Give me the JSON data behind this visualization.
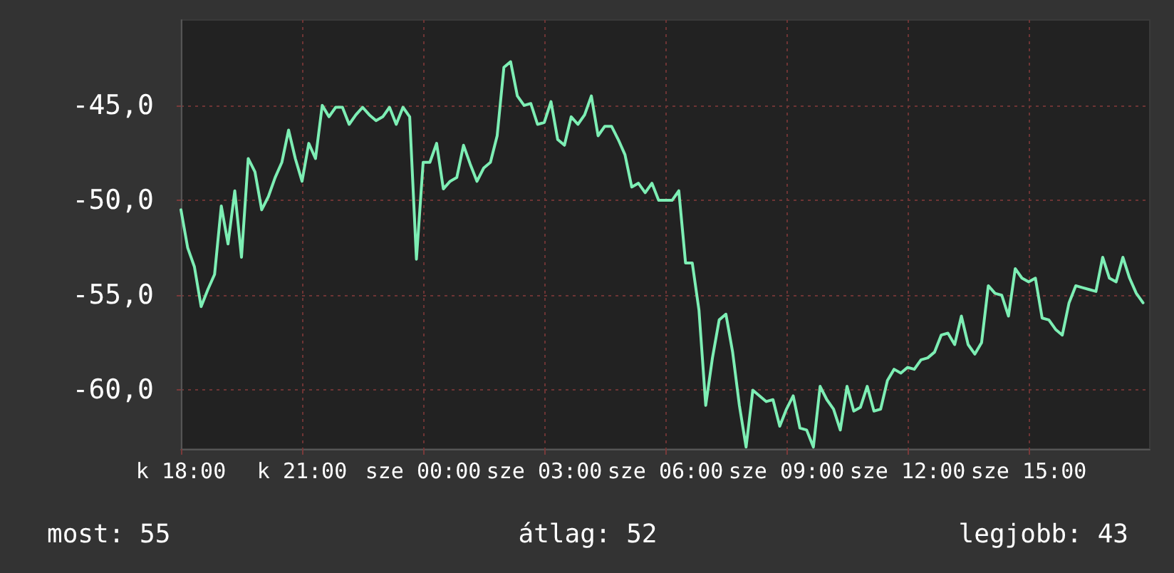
{
  "chart_data": {
    "type": "line",
    "categories": [
      "k 18:00",
      null,
      null,
      null,
      null,
      null,
      null,
      null,
      null,
      null,
      null,
      null,
      null,
      null,
      null,
      null,
      null,
      null,
      "k 21:00",
      null,
      null,
      null,
      null,
      null,
      null,
      null,
      null,
      null,
      null,
      null,
      null,
      null,
      null,
      null,
      null,
      null,
      "sze 00:00",
      null,
      null,
      null,
      null,
      null,
      null,
      null,
      null,
      null,
      null,
      null,
      null,
      null,
      null,
      null,
      null,
      null,
      "sze 03:00",
      null,
      null,
      null,
      null,
      null,
      null,
      null,
      null,
      null,
      null,
      null,
      null,
      null,
      null,
      null,
      null,
      null,
      "sze 06:00",
      null,
      null,
      null,
      null,
      null,
      null,
      null,
      null,
      null,
      null,
      null,
      null,
      null,
      null,
      null,
      null,
      null,
      "sze 09:00",
      null,
      null,
      null,
      null,
      null,
      null,
      null,
      null,
      null,
      null,
      null,
      null,
      null,
      null,
      null,
      null,
      null,
      "sze 12:00",
      null,
      null,
      null,
      null,
      null,
      null,
      null,
      null,
      null,
      null,
      null,
      null,
      null,
      null,
      null,
      null,
      null,
      "sze 15:00",
      null,
      null,
      null,
      null,
      null,
      null,
      null,
      null,
      null,
      null,
      null,
      null,
      null,
      null,
      null,
      null,
      null,
      null
    ],
    "series": [
      {
        "color": "#7deeb4",
        "values": [
          -50.5,
          -52.5,
          -53.5,
          -55.6,
          -54.7,
          -53.9,
          -50.3,
          -52.3,
          -49.5,
          -53.0,
          -47.8,
          -48.5,
          -50.5,
          -49.8,
          -48.8,
          -48.0,
          -46.3,
          -47.8,
          -49.0,
          -47.0,
          -47.8,
          -45.0,
          -45.6,
          -45.1,
          -45.1,
          -46.0,
          -45.5,
          -45.1,
          -45.5,
          -45.8,
          -45.6,
          -45.1,
          -46.0,
          -45.1,
          -45.6,
          -53.1,
          -48.0,
          -48.0,
          -47.0,
          -49.4,
          -49.0,
          -48.8,
          -47.1,
          -48.1,
          -49.0,
          -48.3,
          -48.0,
          -46.6,
          -43.0,
          -42.7,
          -44.5,
          -45.0,
          -44.9,
          -46.0,
          -45.9,
          -44.8,
          -46.8,
          -47.1,
          -45.6,
          -46.0,
          -45.5,
          -44.5,
          -46.6,
          -46.1,
          -46.1,
          -46.8,
          -47.6,
          -49.3,
          -49.1,
          -49.6,
          -49.1,
          -50.0,
          -50.0,
          -50.0,
          -49.5,
          -53.3,
          -53.3,
          -55.8,
          -60.8,
          -58.3,
          -56.3,
          -56.0,
          -58.0,
          -60.8,
          -63.0,
          -60.0,
          -60.3,
          -60.6,
          -60.5,
          -61.9,
          -61.0,
          -60.3,
          -62.0,
          -62.1,
          -63.0,
          -59.8,
          -60.5,
          -61.0,
          -62.1,
          -59.8,
          -61.1,
          -60.9,
          -59.8,
          -61.1,
          -61.0,
          -59.5,
          -58.9,
          -59.1,
          -58.8,
          -58.9,
          -58.4,
          -58.3,
          -58.0,
          -57.1,
          -57.0,
          -57.6,
          -56.1,
          -57.6,
          -58.1,
          -57.5,
          -54.5,
          -54.9,
          -55.0,
          -56.1,
          -53.6,
          -54.1,
          -54.3,
          -54.1,
          -56.2,
          -56.3,
          -56.8,
          -57.1,
          -55.4,
          -54.5,
          -54.6,
          -54.7,
          -54.8,
          -53.0,
          -54.1,
          -54.3,
          -53.0,
          -54.1,
          -54.9,
          -55.4,
          null
        ]
      }
    ],
    "ylim": [
      -63.1,
      -40.5
    ],
    "yticks": [
      {
        "value": -60,
        "label": "-60,0"
      },
      {
        "value": -55,
        "label": "-55,0"
      },
      {
        "value": -50,
        "label": "-50,0"
      },
      {
        "value": -45,
        "label": "-45,0"
      }
    ],
    "grid": true,
    "annotations": [
      "most: 55",
      "átlag: 52",
      "legjobb: 43"
    ]
  }
}
